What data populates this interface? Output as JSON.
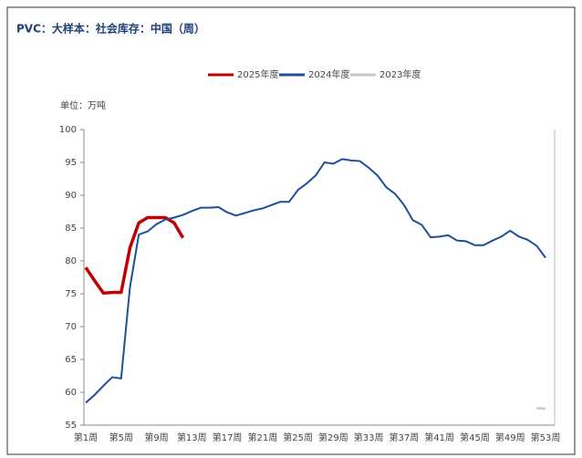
{
  "chart_data": {
    "type": "line",
    "title": "PVC：大样本：社会库存：中国（周）",
    "unit_label": "单位：万吨",
    "categories": [
      "第1周",
      null,
      null,
      null,
      "第5周",
      null,
      null,
      null,
      "第9周",
      null,
      null,
      null,
      "第13周",
      null,
      null,
      null,
      "第17周",
      null,
      null,
      null,
      "第21周",
      null,
      null,
      null,
      "第25周",
      null,
      null,
      null,
      "第29周",
      null,
      null,
      null,
      "第33周",
      null,
      null,
      null,
      "第37周",
      null,
      null,
      null,
      "第41周",
      null,
      null,
      null,
      "第45周",
      null,
      null,
      null,
      "第49周",
      null,
      null,
      null,
      "第53周"
    ],
    "series": [
      {
        "name": "2025年度",
        "color": "#c00000",
        "width": 3.5,
        "values": [
          79.0,
          77.0,
          75.1,
          75.2,
          75.2,
          82.0,
          85.8,
          86.6,
          86.6,
          86.6,
          85.8,
          83.5,
          null,
          null,
          null,
          null,
          null,
          null,
          null,
          null,
          null,
          null,
          null,
          null,
          null,
          null,
          null,
          null,
          null,
          null,
          null,
          null,
          null,
          null,
          null,
          null,
          null,
          null,
          null,
          null,
          null,
          null,
          null,
          null,
          null,
          null,
          null,
          null,
          null,
          null,
          null,
          null,
          null
        ]
      },
      {
        "name": "2024年度",
        "color": "#1f4e9a",
        "width": 2,
        "values": [
          58.4,
          59.6,
          61.0,
          62.3,
          62.1,
          76.0,
          84.0,
          84.5,
          85.6,
          86.3,
          86.6,
          87.0,
          87.6,
          88.1,
          88.1,
          88.2,
          87.4,
          86.9,
          87.3,
          87.7,
          88.0,
          88.5,
          89.0,
          89.0,
          90.8,
          91.8,
          93.0,
          95.0,
          94.8,
          95.5,
          95.3,
          95.2,
          94.2,
          93.0,
          91.2,
          90.2,
          88.5,
          86.2,
          85.5,
          83.6,
          83.7,
          83.9,
          83.1,
          83.0,
          82.4,
          82.4,
          83.1,
          83.7,
          84.6,
          83.7,
          83.2,
          82.3,
          80.5
        ]
      },
      {
        "name": "2023年度",
        "color": "#c8c8c8",
        "width": 2.5,
        "values": [
          null,
          null,
          null,
          null,
          null,
          null,
          null,
          null,
          null,
          null,
          null,
          null,
          null,
          null,
          null,
          null,
          null,
          null,
          null,
          null,
          null,
          null,
          null,
          null,
          null,
          null,
          null,
          null,
          null,
          null,
          null,
          null,
          null,
          null,
          null,
          null,
          null,
          null,
          null,
          null,
          null,
          null,
          null,
          null,
          null,
          null,
          null,
          null,
          null,
          null,
          null,
          57.6,
          57.5
        ]
      }
    ],
    "ylim": [
      55,
      100
    ],
    "yticks": [
      55,
      60,
      65,
      70,
      75,
      80,
      85,
      90,
      95,
      100
    ],
    "grid": false
  }
}
